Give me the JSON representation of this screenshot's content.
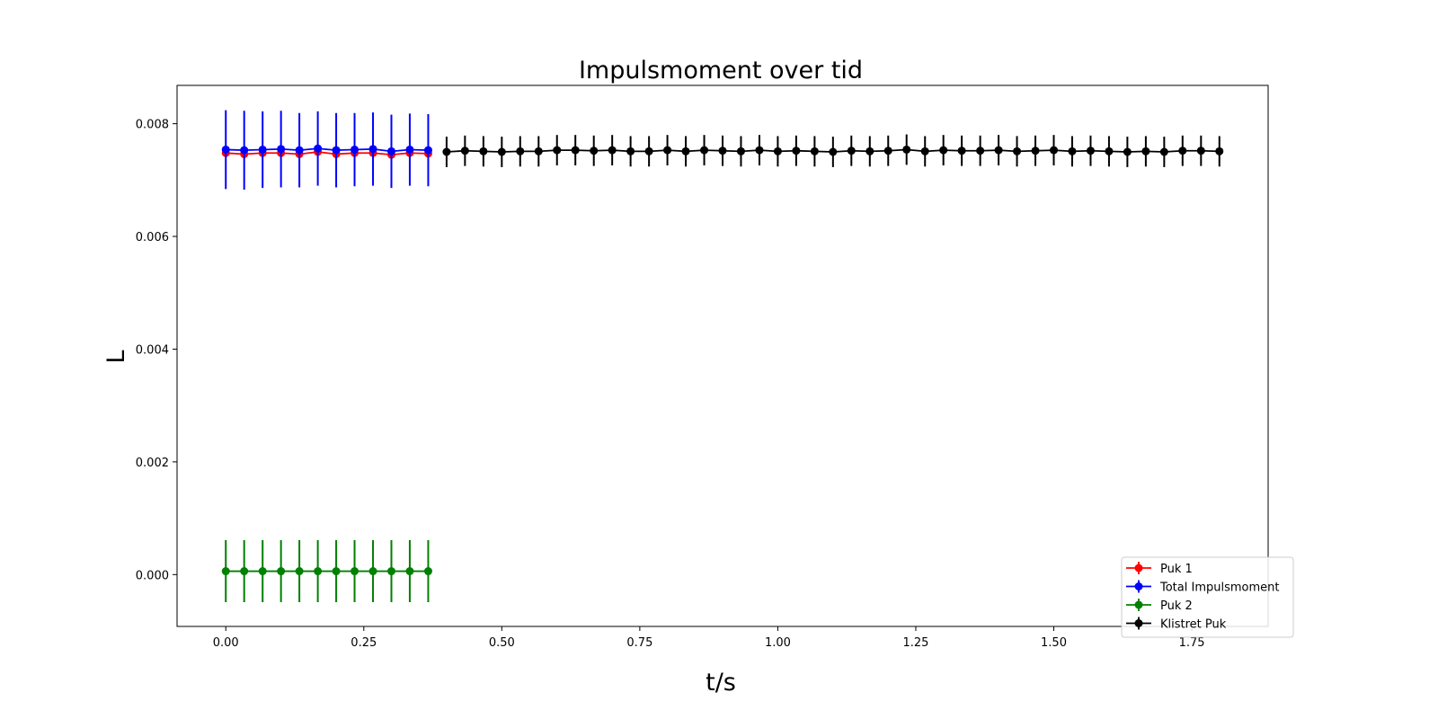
{
  "chart_data": {
    "type": "line",
    "title": "Impulsmoment over tid",
    "xlabel": "t/s",
    "ylabel": "L",
    "xlim": [
      -0.0883,
      1.8883
    ],
    "ylim": [
      -0.00092,
      0.00868
    ],
    "x_ticks": [
      0.0,
      0.25,
      0.5,
      0.75,
      1.0,
      1.25,
      1.5,
      1.75
    ],
    "x_tick_labels": [
      "0.00",
      "0.25",
      "0.50",
      "0.75",
      "1.00",
      "1.25",
      "1.50",
      "1.75"
    ],
    "y_ticks": [
      0.0,
      0.002,
      0.004,
      0.006,
      0.008
    ],
    "y_tick_labels": [
      "0.000",
      "0.002",
      "0.004",
      "0.006",
      "0.008"
    ],
    "grid": false,
    "legend_position": "bottom-right",
    "series": [
      {
        "name": "Puk 1",
        "color": "#ff0000",
        "x": [
          0.0,
          0.0333,
          0.0667,
          0.1,
          0.1333,
          0.1667,
          0.2,
          0.2333,
          0.2667,
          0.3,
          0.3333,
          0.3667
        ],
        "y": [
          0.00748,
          0.00746,
          0.00748,
          0.00748,
          0.00746,
          0.0075,
          0.00746,
          0.00748,
          0.00748,
          0.00745,
          0.00748,
          0.00747
        ],
        "yerr": [
          3e-05,
          3e-05,
          3e-05,
          3e-05,
          3e-05,
          3e-05,
          3e-05,
          3e-05,
          3e-05,
          3e-05,
          3e-05,
          3e-05
        ]
      },
      {
        "name": "Total Impulsmoment",
        "color": "#0000ff",
        "x": [
          0.0,
          0.0333,
          0.0667,
          0.1,
          0.1333,
          0.1667,
          0.2,
          0.2333,
          0.2667,
          0.3,
          0.3333,
          0.3667
        ],
        "y": [
          0.00754,
          0.00753,
          0.00754,
          0.00755,
          0.00753,
          0.00756,
          0.00753,
          0.00754,
          0.00755,
          0.00751,
          0.00754,
          0.00753
        ],
        "yerr": [
          0.0007,
          0.0007,
          0.00068,
          0.00068,
          0.00066,
          0.00066,
          0.00066,
          0.00065,
          0.00065,
          0.00065,
          0.00064,
          0.00064
        ]
      },
      {
        "name": "Puk 2",
        "color": "#008000",
        "x": [
          0.0,
          0.0333,
          0.0667,
          0.1,
          0.1333,
          0.1667,
          0.2,
          0.2333,
          0.2667,
          0.3,
          0.3333,
          0.3667
        ],
        "y": [
          6e-05,
          6e-05,
          6e-05,
          6e-05,
          6e-05,
          6e-05,
          6e-05,
          6e-05,
          6e-05,
          6e-05,
          6e-05,
          6e-05
        ],
        "yerr": [
          0.00055,
          0.00055,
          0.00055,
          0.00055,
          0.00055,
          0.00055,
          0.00055,
          0.00055,
          0.00055,
          0.00055,
          0.00055,
          0.00055
        ]
      },
      {
        "name": "Klistret Puk",
        "color": "#000000",
        "x": [
          0.4,
          0.4333,
          0.4667,
          0.5,
          0.5333,
          0.5667,
          0.6,
          0.6333,
          0.6667,
          0.7,
          0.7333,
          0.7667,
          0.8,
          0.8333,
          0.8667,
          0.9,
          0.9333,
          0.9667,
          1.0,
          1.0333,
          1.0667,
          1.1,
          1.1333,
          1.1667,
          1.2,
          1.2333,
          1.2667,
          1.3,
          1.3333,
          1.3667,
          1.4,
          1.4333,
          1.4667,
          1.5,
          1.5333,
          1.5667,
          1.6,
          1.6333,
          1.6667,
          1.7,
          1.7333,
          1.7667,
          1.8
        ],
        "y": [
          0.0075,
          0.00752,
          0.00751,
          0.0075,
          0.00751,
          0.00751,
          0.00753,
          0.00753,
          0.00752,
          0.00753,
          0.00751,
          0.00751,
          0.00753,
          0.00751,
          0.00753,
          0.00752,
          0.00751,
          0.00753,
          0.00751,
          0.00752,
          0.00751,
          0.0075,
          0.00752,
          0.00751,
          0.00752,
          0.00754,
          0.00751,
          0.00753,
          0.00752,
          0.00752,
          0.00753,
          0.00751,
          0.00752,
          0.00753,
          0.00751,
          0.00752,
          0.00751,
          0.0075,
          0.00751,
          0.0075,
          0.00752,
          0.00752,
          0.00751
        ],
        "yerr": [
          0.00027,
          0.00027,
          0.00027,
          0.00027,
          0.00027,
          0.00027,
          0.00027,
          0.00027,
          0.00027,
          0.00027,
          0.00027,
          0.00027,
          0.00027,
          0.00027,
          0.00027,
          0.00027,
          0.00027,
          0.00027,
          0.00027,
          0.00027,
          0.00027,
          0.00027,
          0.00027,
          0.00027,
          0.00027,
          0.00027,
          0.00027,
          0.00027,
          0.00027,
          0.00027,
          0.00027,
          0.00027,
          0.00027,
          0.00027,
          0.00027,
          0.00027,
          0.00027,
          0.00027,
          0.00027,
          0.00027,
          0.00027,
          0.00027,
          0.00027
        ]
      }
    ],
    "legend_order": [
      "Puk 1",
      "Total Impulsmoment",
      "Puk 2",
      "Klistret Puk"
    ]
  }
}
